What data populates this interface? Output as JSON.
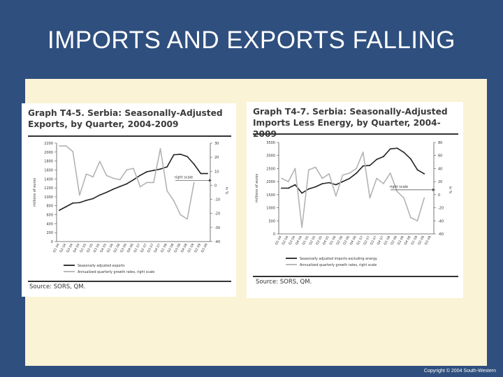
{
  "slide": {
    "title": "IMPORTS AND EXPORTS FALLING",
    "copyright": "Copyright © 2004 South-Western"
  },
  "chart_data": [
    {
      "type": "line",
      "title": "Graph T4-5. Serbia: Seasonally-Adjusted Exports, by Quarter, 2004-2009",
      "title_lines": [
        "Graph T4-5. Serbia: Seasonally-Adjusted",
        "Exports, by Quarter, 2004-2009"
      ],
      "source": "Source: SORS, QM.",
      "ylabel": "millions of euros",
      "y2label": "in %",
      "ylim": [
        0,
        2200
      ],
      "y2lim": [
        -40,
        30
      ],
      "yticks": [
        0,
        200,
        400,
        600,
        800,
        1000,
        1200,
        1400,
        1600,
        1800,
        2000,
        2200
      ],
      "y2ticks": [
        -40,
        -30,
        -20,
        -10,
        0,
        10,
        20,
        30
      ],
      "annotation": "right scale",
      "categories": [
        "Q1 04",
        "Q2 04",
        "Q3 04",
        "Q4 04",
        "Q1 05",
        "Q2 05",
        "Q3 05",
        "Q4 05",
        "Q1 06",
        "Q2 06",
        "Q3 06",
        "Q4 06",
        "Q1 07",
        "Q2 07",
        "Q3 07",
        "Q4 07",
        "Q1 08",
        "Q2 08",
        "Q3 08",
        "Q4 08",
        "Q1 09",
        "Q2 09",
        "Q3 09"
      ],
      "series": [
        {
          "name": "Seasonally adjusted exports",
          "axis": "left",
          "color": "#222222",
          "values": [
            700,
            780,
            860,
            870,
            920,
            960,
            1040,
            1100,
            1170,
            1230,
            1290,
            1380,
            1480,
            1560,
            1590,
            1620,
            1670,
            1940,
            1950,
            1900,
            1730,
            1520,
            1520
          ]
        },
        {
          "name": "Annualized quarterly growth rates, right scale",
          "axis": "right",
          "color": "#b3b3b3",
          "values": [
            28,
            28,
            24,
            -7,
            8,
            6,
            17,
            7,
            5,
            4,
            11,
            12,
            -1,
            2,
            2,
            26,
            -4,
            -11,
            -21,
            -24,
            2,
            null,
            null
          ]
        }
      ]
    },
    {
      "type": "line",
      "title": "Graph T4-7. Serbia: Seasonally-Adjusted Imports Less Energy, by Quarter, 2004-2009",
      "title_lines": [
        "Graph T4-7. Serbia: Seasonally-Adjusted",
        "Imports Less Energy, by Quarter, 2004-2009"
      ],
      "source": "Source: SORS, QM.",
      "ylabel": "millions of euros",
      "y2label": "in %",
      "ylim": [
        0,
        3500
      ],
      "y2lim": [
        -60,
        80
      ],
      "yticks": [
        0,
        500,
        1000,
        1500,
        2000,
        2500,
        3000,
        3500
      ],
      "y2ticks": [
        -60,
        -40,
        -20,
        0,
        20,
        40,
        60,
        80
      ],
      "annotation": "right scale",
      "categories": [
        "Q1 04",
        "Q2 04",
        "Q3 04",
        "Q4 04",
        "Q1 05",
        "Q2 05",
        "Q3 05",
        "Q4 05",
        "Q1 06",
        "Q2 06",
        "Q3 06",
        "Q4 06",
        "Q1 07",
        "Q2 07",
        "Q3 07",
        "Q4 07",
        "Q1 08",
        "Q2 08",
        "Q3 08",
        "Q4 08",
        "Q1 09",
        "Q2 09",
        "Q3 09"
      ],
      "series": [
        {
          "name": "Seasonally adjusted imports excluding energy",
          "axis": "left",
          "color": "#222222",
          "values": [
            1750,
            1750,
            1880,
            1560,
            1720,
            1800,
            1920,
            1960,
            1880,
            2000,
            2120,
            2320,
            2600,
            2620,
            2850,
            2960,
            3250,
            3280,
            3120,
            2870,
            2450,
            2300,
            null
          ]
        },
        {
          "name": "Annualized quarterly growth rates, right scale",
          "axis": "right",
          "color": "#b3b3b3",
          "values": [
            25,
            20,
            40,
            -50,
            38,
            42,
            25,
            32,
            -2,
            30,
            33,
            40,
            65,
            -5,
            25,
            17,
            33,
            5,
            -5,
            -35,
            -40,
            -5,
            null
          ]
        }
      ]
    }
  ]
}
